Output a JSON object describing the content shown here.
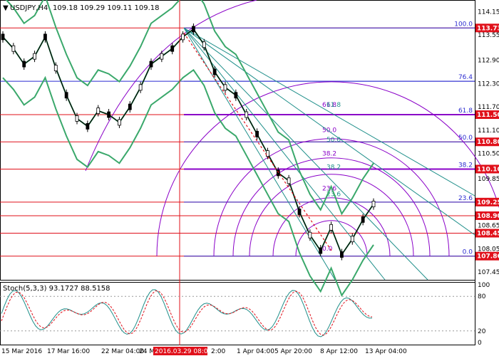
{
  "header": {
    "symbol": "USDJPY,H4",
    "ohlc": "109.18 109.29 109.11 109.18"
  },
  "price_axis": {
    "ticks": [
      "114.15",
      "113.55",
      "112.90",
      "112.30",
      "111.70",
      "111.10",
      "110.50",
      "109.85",
      "109.25",
      "108.65",
      "108.05",
      "107.45"
    ],
    "tick_values": [
      114.15,
      113.55,
      112.9,
      112.3,
      111.7,
      111.1,
      110.5,
      109.85,
      109.25,
      108.65,
      108.05,
      107.45
    ],
    "min": 107.25,
    "max": 114.45
  },
  "horizontal_levels": [
    {
      "value": 113.73,
      "label": "113.73",
      "color": "#e0101a",
      "fib": "100.0",
      "fib_color": "#2b2bd0"
    },
    {
      "value": 112.36,
      "label": "",
      "color": "#2b2bd0",
      "fib": "76.4",
      "fib_color": "#2b2bd0"
    },
    {
      "value": 111.5,
      "label": "111.50",
      "color": "#e0101a",
      "fib": "61.8",
      "fib_color": "#2b2bd0"
    },
    {
      "value": 110.8,
      "label": "110.80",
      "color": "#e0101a",
      "fib": "50.0",
      "fib_color": "#2b2bd0"
    },
    {
      "value": 110.1,
      "label": "110.10",
      "color": "#e0101a",
      "fib": "38.2",
      "fib_color": "#2b2bd0"
    },
    {
      "value": 109.25,
      "label": "109.25",
      "color": "#e0101a",
      "fib": "23.6",
      "fib_color": "#2b2bd0"
    },
    {
      "value": 108.9,
      "label": "108.90",
      "color": "#e0101a",
      "fib": "",
      "fib_color": ""
    },
    {
      "value": 108.45,
      "label": "108.45",
      "color": "#e0101a",
      "fib": "",
      "fib_color": ""
    },
    {
      "value": 107.86,
      "label": "107.86",
      "color": "#e0101a",
      "fib": "0.0",
      "fib_color": "#2b2bd0"
    }
  ],
  "purple_levels": [
    111.5,
    110.1
  ],
  "arc_labels": [
    "61.8",
    "50.0",
    "38.2",
    "23.6",
    "0.0"
  ],
  "fan_labels": [
    "61.8",
    "50.0",
    "38.2",
    "23.6"
  ],
  "stoch": {
    "title": "Stoch(5,3,3) 93.1727 88.5158",
    "ticks": [
      "100",
      "80",
      "20",
      "0"
    ],
    "tick_values": [
      100,
      80,
      20,
      0
    ]
  },
  "time_axis": {
    "labels": [
      "15 Mar 2016",
      "17 Mar 16:00",
      "22 Mar 04:00",
      "24 M",
      "2016.03.29 08:00",
      "2:00",
      "1 Apr 04:00",
      "5 Apr 20:00",
      "8 Apr 12:00",
      "13 Apr 04:00"
    ],
    "highlight": "2016.03.29 08:00"
  },
  "colors": {
    "candle": "#000000",
    "bollinger": "#3aa86b",
    "fan": "#1f8f8a",
    "arc": "#8a00c8",
    "level": "#e0101a",
    "fib": "#2b2bd0",
    "stoch_main": "#1f8f8a",
    "stoch_signal": "#e0101a"
  },
  "chart_data": {
    "type": "line",
    "title": "USDJPY,H4",
    "series": [
      {
        "name": "USDJPY,H4",
        "values": [
          113.5,
          113.2,
          112.8,
          113.0,
          113.5,
          112.7,
          112.0,
          111.4,
          111.2,
          111.6,
          111.5,
          111.3,
          111.7,
          112.2,
          112.8,
          113.0,
          113.2,
          113.5,
          113.7,
          113.3,
          112.6,
          112.2,
          112.0,
          111.5,
          111.0,
          110.5,
          110.0,
          109.8,
          109.0,
          108.4,
          108.0,
          108.6,
          107.9,
          108.3,
          108.8,
          109.2
        ]
      }
    ],
    "ylim": [
      107.25,
      114.45
    ],
    "ylabel": ""
  }
}
